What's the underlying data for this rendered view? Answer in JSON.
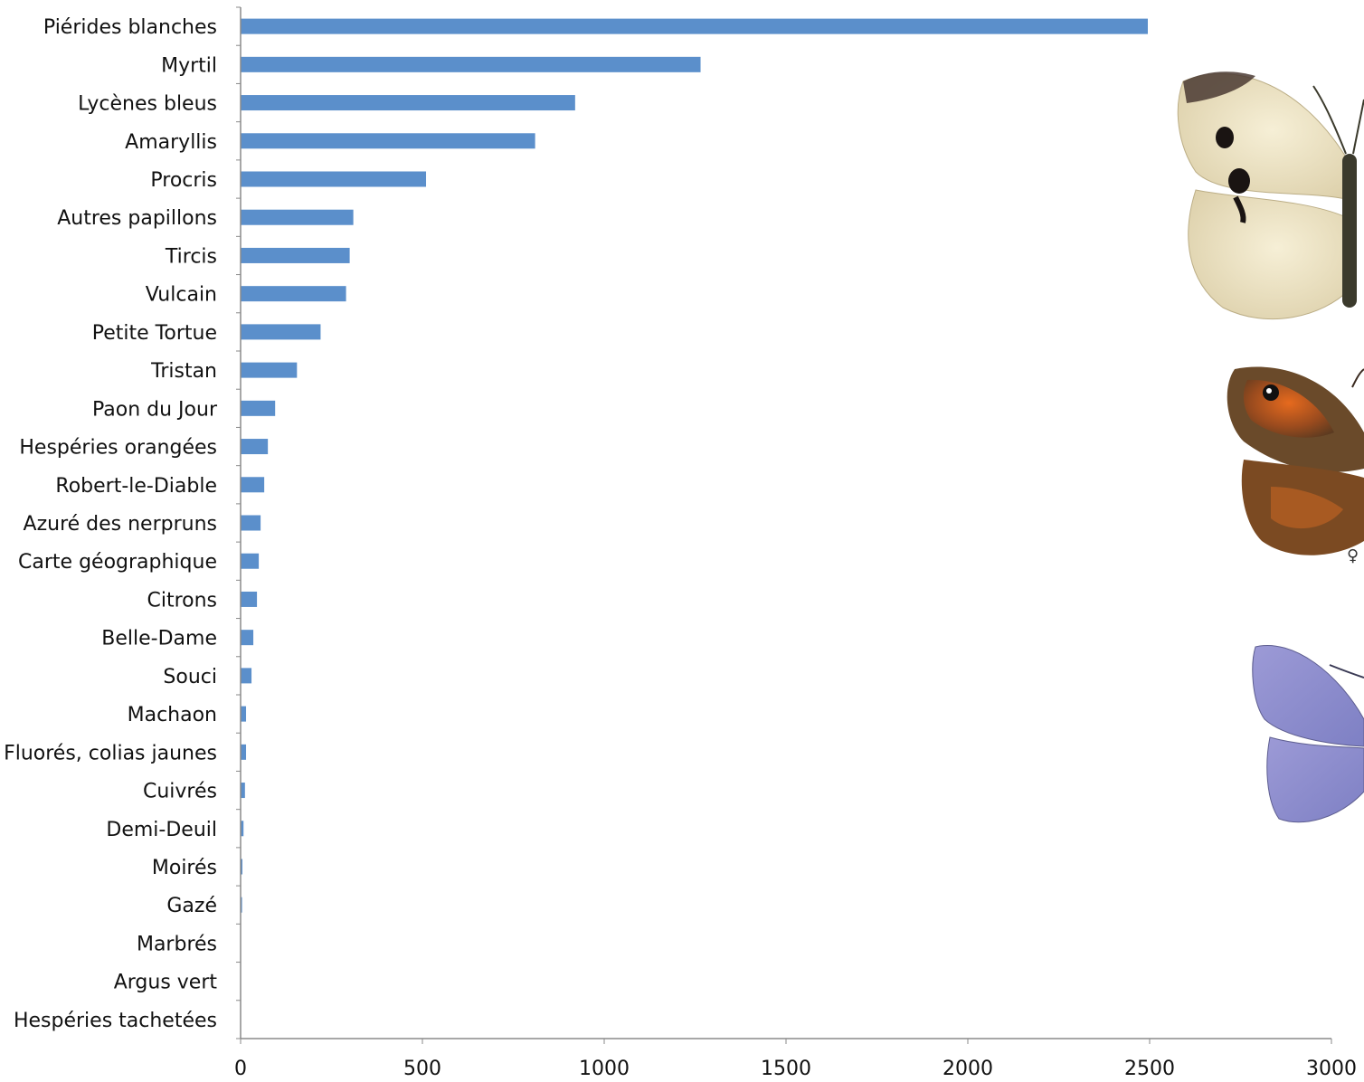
{
  "colors": {
    "bar": "#5b8fcb",
    "axis": "#8a8a8a",
    "text": "#111111"
  },
  "illustrations": [
    {
      "name": "white-butterfly-illustration",
      "kind": "cabbage-white"
    },
    {
      "name": "brown-butterfly-illustration",
      "kind": "meadow-brown",
      "mark": "♀"
    },
    {
      "name": "blue-butterfly-illustration",
      "kind": "common-blue"
    }
  ],
  "chart_data": {
    "type": "bar",
    "orientation": "horizontal",
    "categories": [
      "Piérides blanches",
      "Myrtil",
      "Lycènes bleus",
      "Amaryllis",
      "Procris",
      "Autres papillons",
      "Tircis",
      "Vulcain",
      "Petite Tortue",
      "Tristan",
      "Paon du Jour",
      "Hespéries orangées",
      "Robert-le-Diable",
      "Azuré des nerpruns",
      "Carte géographique",
      "Citrons",
      "Belle-Dame",
      "Souci",
      "Machaon",
      "Fluorés, colias jaunes",
      "Cuivrés",
      "Demi-Deuil",
      "Moirés",
      "Gazé",
      "Marbrés",
      "Argus vert",
      "Hespéries tachetées"
    ],
    "values": [
      2495,
      1265,
      920,
      810,
      510,
      310,
      300,
      290,
      220,
      155,
      95,
      75,
      65,
      55,
      50,
      45,
      35,
      30,
      15,
      15,
      12,
      8,
      5,
      4,
      1,
      0,
      0
    ],
    "xticks": [
      "0",
      "500",
      "1000",
      "1500",
      "2000",
      "2500",
      "3000"
    ],
    "xlim": [
      0,
      3000
    ],
    "title": "",
    "xlabel": "",
    "ylabel": "",
    "grid": false,
    "legend": "none"
  }
}
